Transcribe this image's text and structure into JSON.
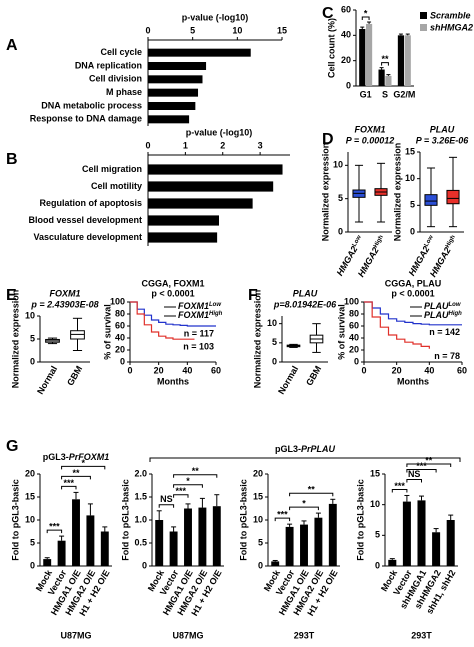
{
  "chart_data": [
    {
      "type": "hbar",
      "panel": "A",
      "title": "p-value (-log10)",
      "categories": [
        "Cell cycle",
        "DNA replication",
        "Cell division",
        "M phase",
        "DNA metabolic process",
        "Response to DNA damage"
      ],
      "values": [
        11.5,
        6.5,
        6.1,
        5.6,
        5.3,
        4.6
      ],
      "color": "#000000",
      "xlim": [
        0,
        15
      ],
      "xticks": [
        0,
        5,
        10,
        15
      ]
    },
    {
      "type": "hbar",
      "panel": "B",
      "title": "p-value (-log10)",
      "categories": [
        "Cell migration",
        "Cell motility",
        "Regulation of apoptosis",
        "Blood vessel development",
        "Vasculature development"
      ],
      "values": [
        3.6,
        3.35,
        2.8,
        1.9,
        1.85
      ],
      "color": "#000000",
      "xlim": [
        0,
        3.8
      ],
      "xticks": [
        0,
        1,
        2,
        3
      ]
    },
    {
      "type": "grouped_bar",
      "panel": "C",
      "ylabel": "Cell count (%)",
      "categories": [
        "G1",
        "S",
        "G2/M"
      ],
      "series": [
        {
          "name": "Scramble",
          "color": "#000000",
          "values": [
            45,
            13,
            40
          ],
          "errors": [
            1.5,
            1.5,
            1
          ]
        },
        {
          "name": "shHMGA2",
          "color": "#a6a6a6",
          "values": [
            49,
            8,
            40
          ],
          "errors": [
            1.5,
            1,
            1
          ]
        }
      ],
      "ylim": [
        0,
        60
      ],
      "yticks": [
        0,
        20,
        40,
        60
      ],
      "annotations": [
        {
          "category": "G1",
          "label": "*"
        },
        {
          "category": "S",
          "label": "**"
        }
      ]
    },
    {
      "type": "box",
      "panel": "D",
      "title": "FOXM1",
      "subtitle": "P = 0.00012",
      "ylabel": "Normalized expression",
      "categories": [
        {
          "base": "HMGA2",
          "sup": "Low"
        },
        {
          "base": "HMGA2",
          "sup": "High"
        }
      ],
      "boxes": [
        {
          "min": 1.5,
          "q1": 5.2,
          "median": 5.8,
          "q3": 6.3,
          "max": 10
        },
        {
          "min": 1.5,
          "q1": 5.5,
          "median": 6,
          "q3": 6.5,
          "max": 10.3
        }
      ],
      "colors": [
        "#2b4fd6",
        "#e8302a"
      ],
      "ylim": [
        0,
        12
      ],
      "yticks": [
        0,
        5,
        10
      ]
    },
    {
      "type": "box",
      "title": "PLAU",
      "subtitle": "P = 3.26E-06",
      "ylabel": "Normalized expression",
      "categories": [
        {
          "base": "HMGA2",
          "sup": "Low"
        },
        {
          "base": "HMGA2",
          "sup": "High"
        }
      ],
      "boxes": [
        {
          "min": 1,
          "q1": 5,
          "median": 5.8,
          "q3": 7,
          "max": 12
        },
        {
          "min": 1,
          "q1": 5.3,
          "median": 6.3,
          "q3": 7.8,
          "max": 14
        }
      ],
      "colors": [
        "#2b4fd6",
        "#e8302a"
      ],
      "ylim": [
        0,
        15
      ],
      "yticks": [
        0,
        5,
        10,
        15
      ]
    },
    {
      "type": "box",
      "panel": "E",
      "title": "FOXM1",
      "subtitle": "p = 2.43903E-08",
      "ylabel": "Normalized expression",
      "categories": [
        "Normal",
        "GBM"
      ],
      "boxes": [
        {
          "min": 4,
          "q1": 4.3,
          "median": 4.6,
          "q3": 4.9,
          "max": 5.2
        },
        {
          "min": 2.5,
          "q1": 5,
          "median": 6,
          "q3": 6.8,
          "max": 9.5
        }
      ],
      "colors": [
        "#ffffff",
        "#ffffff"
      ],
      "ylim": [
        0,
        10
      ],
      "yticks": [
        0,
        5,
        10
      ]
    },
    {
      "type": "line",
      "title": "CGGA, FOXM1",
      "subtitle": "p < 0.0001",
      "xlabel": "Months",
      "ylabel": "% of survival",
      "x": [
        0,
        5,
        10,
        15,
        20,
        25,
        30,
        35,
        40,
        45,
        50,
        55,
        60
      ],
      "series": [
        {
          "name": "FOXM1",
          "sup": "Low",
          "color": "#2233cc",
          "values": [
            100,
            88,
            78,
            70,
            66,
            63,
            62,
            61,
            60,
            60,
            60,
            60,
            60
          ],
          "n_label": "n = 117"
        },
        {
          "name": "FOXM1",
          "sup": "High",
          "color": "#e0302a",
          "values": [
            100,
            80,
            62,
            50,
            43,
            40,
            38,
            38,
            38,
            38,
            null,
            null,
            null
          ],
          "n_label": "n = 103"
        }
      ],
      "xlim": [
        0,
        60
      ],
      "xticks": [
        0,
        20,
        40,
        60
      ],
      "ylim": [
        0,
        100
      ],
      "yticks": [
        0,
        20,
        40,
        60,
        80,
        100
      ]
    },
    {
      "type": "box",
      "panel": "F",
      "title": "PLAU",
      "subtitle": "p=8.01942E-06",
      "ylabel": "Normalized expression",
      "categories": [
        "Normal",
        "GBM"
      ],
      "boxes": [
        {
          "min": 3.8,
          "q1": 4,
          "median": 4.2,
          "q3": 4.4,
          "max": 4.6
        },
        {
          "min": 2.5,
          "q1": 5,
          "median": 6,
          "q3": 7,
          "max": 10
        }
      ],
      "colors": [
        "#ffffff",
        "#ffffff"
      ],
      "ylim": [
        0,
        12
      ],
      "yticks": [
        0,
        5,
        10
      ]
    },
    {
      "type": "line",
      "title": "CGGA, PLAU",
      "subtitle": "p < 0.0001",
      "xlabel": "Months",
      "ylabel": "% of survival",
      "x": [
        0,
        5,
        10,
        15,
        20,
        25,
        30,
        35,
        40,
        45,
        50,
        55,
        60
      ],
      "series": [
        {
          "name": "PLAU",
          "sup": "Low",
          "color": "#2233cc",
          "values": [
            100,
            90,
            80,
            72,
            68,
            66,
            64,
            63,
            62,
            62,
            62,
            62,
            62
          ],
          "n_label": "n = 142"
        },
        {
          "name": "PLAU",
          "sup": "High",
          "color": "#e0302a",
          "values": [
            100,
            75,
            58,
            45,
            38,
            33,
            30,
            26,
            22,
            null,
            null,
            null,
            null
          ],
          "n_label": "n = 78"
        }
      ],
      "xlim": [
        0,
        60
      ],
      "xticks": [
        0,
        20,
        40,
        60
      ],
      "ylim": [
        0,
        100
      ],
      "yticks": [
        0,
        20,
        40,
        60,
        80,
        100
      ]
    },
    {
      "type": "bar",
      "panel": "G",
      "ylabel": "Fold to pGL3-basic",
      "categories": [
        "Mock",
        "Vector",
        "HMGA1 O/E",
        "HMGA2 O/E",
        "H1 + H2 O/E"
      ],
      "values": [
        1.5,
        5.5,
        14.5,
        11,
        7.5
      ],
      "errors": [
        0.3,
        1,
        1.5,
        2.5,
        1
      ],
      "color": "#000000",
      "ylim": [
        0,
        20
      ],
      "yticks": [
        0,
        5,
        10,
        15,
        20
      ],
      "cell_line": "U87MG",
      "comparisons": [
        {
          "from": "Mock",
          "to": "Vector",
          "label": "***"
        },
        {
          "from": "Vector",
          "to": "HMGA1 O/E",
          "label": "***"
        },
        {
          "from": "Vector",
          "to": "HMGA2 O/E",
          "label": "**"
        },
        {
          "from": "Vector",
          "to": "H1 + H2 O/E",
          "label": "*"
        }
      ]
    },
    {
      "type": "bar",
      "ylabel": "Fold to pGL3-basic",
      "categories": [
        "Mock",
        "Vector",
        "HMGA1 O/E",
        "HMGA2 O/E",
        "H1 + H2 O/E"
      ],
      "values": [
        1.0,
        0.75,
        1.25,
        1.27,
        1.3
      ],
      "errors": [
        0.2,
        0.1,
        0.1,
        0.2,
        0.25
      ],
      "color": "#000000",
      "ylim": [
        0,
        2
      ],
      "yticks": [
        0,
        0.5,
        {
          "value": 1,
          "label": "1.0"
        },
        1.5,
        {
          "value": 2,
          "label": "2.0"
        }
      ],
      "cell_line": "U87MG",
      "comparisons": [
        {
          "from": "Mock",
          "to": "Vector",
          "label": "NS"
        },
        {
          "from": "Vector",
          "to": "HMGA1 O/E",
          "label": "***"
        },
        {
          "from": "Vector",
          "to": "HMGA2 O/E",
          "label": "*"
        },
        {
          "from": "Vector",
          "to": "H1 + H2 O/E",
          "label": "**"
        }
      ]
    },
    {
      "type": "bar",
      "ylabel": "Fold to pGL3-basic",
      "categories": [
        "Mock",
        "Vector",
        "HMGA1 O/E",
        "HMGA2 O/E",
        "H1 + H2 O/E"
      ],
      "values": [
        1,
        8.5,
        9,
        10.5,
        13.5
      ],
      "errors": [
        0.2,
        0.6,
        0.8,
        1,
        1
      ],
      "color": "#000000",
      "ylim": [
        0,
        20
      ],
      "yticks": [
        0,
        5,
        10,
        15,
        20
      ],
      "cell_line": "293T",
      "comparisons": [
        {
          "from": "Mock",
          "to": "Vector",
          "label": "***"
        },
        {
          "from": "Vector",
          "to": "HMGA2 O/E",
          "label": "*"
        },
        {
          "from": "Vector",
          "to": "H1 + H2 O/E",
          "label": "**"
        }
      ]
    },
    {
      "type": "bar",
      "ylabel": "Fold to pGL3-basic",
      "categories": [
        "Mock",
        "Vector",
        "shHMGA1",
        "shHMGA2",
        "shH1, shH2"
      ],
      "values": [
        1,
        10.5,
        10.7,
        5.5,
        7.5
      ],
      "errors": [
        0.2,
        1,
        0.7,
        0.6,
        0.8
      ],
      "color": "#000000",
      "ylim": [
        0,
        15
      ],
      "yticks": [
        0,
        5,
        10,
        15
      ],
      "cell_line": "293T",
      "comparisons": [
        {
          "from": "Mock",
          "to": "Vector",
          "label": "***"
        },
        {
          "from": "Vector",
          "to": "shHMGA1",
          "label": "NS"
        },
        {
          "from": "Vector",
          "to": "shHMGA2",
          "label": "***"
        },
        {
          "from": "Vector",
          "to": "shH1, shH2",
          "label": "**"
        }
      ]
    }
  ],
  "g_titles": [
    {
      "prefix": "pGL3-",
      "gene": "PrFOXM1"
    },
    {
      "prefix": "pGL3-",
      "gene": "PrPLAU"
    }
  ]
}
